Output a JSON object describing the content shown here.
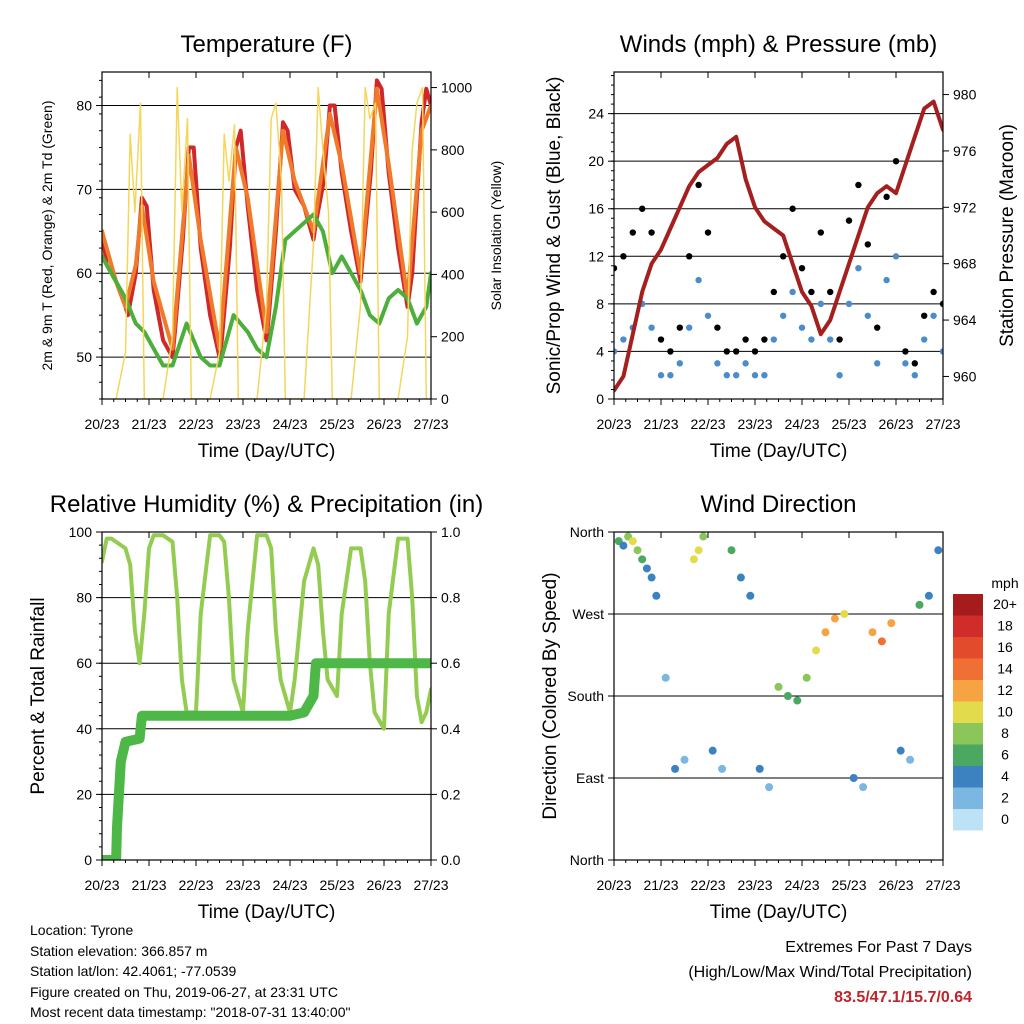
{
  "chart_data": [
    {
      "type": "line",
      "title": "Temperature (F)",
      "xlabel": "Time (Day/UTC)",
      "ylabel": "2m & 9m T (Red, Orange) & 2m Td (Green)",
      "y2label": "Solar Insolation (Yellow)",
      "xlim": [
        0,
        7
      ],
      "xticks": [
        "20/23",
        "21/23",
        "22/23",
        "23/23",
        "24/23",
        "25/23",
        "26/23",
        "27/23"
      ],
      "ylim": [
        45,
        84
      ],
      "yticks": [
        50,
        60,
        70,
        80
      ],
      "y2lim": [
        0,
        1050
      ],
      "y2ticks": [
        0,
        200,
        400,
        600,
        800,
        1000
      ],
      "grid": "horizontal",
      "series": [
        {
          "name": "2m T",
          "axis": "left",
          "color": "#d0282a",
          "x": [
            0,
            0.1,
            0.3,
            0.5,
            0.55,
            0.72,
            0.85,
            0.95,
            1.1,
            1.3,
            1.5,
            1.55,
            1.72,
            1.85,
            1.95,
            2.1,
            2.3,
            2.5,
            2.55,
            2.72,
            2.85,
            2.95,
            3.1,
            3.3,
            3.5,
            3.55,
            3.7,
            3.85,
            3.95,
            4.1,
            4.3,
            4.5,
            4.55,
            4.72,
            4.85,
            4.95,
            5.1,
            5.3,
            5.5,
            5.55,
            5.72,
            5.85,
            5.95,
            6.1,
            6.3,
            6.5,
            6.6,
            6.8,
            6.9,
            7.0
          ],
          "values": [
            65,
            61,
            59,
            56,
            55,
            60,
            69,
            68,
            58,
            52,
            50,
            53,
            64,
            75,
            75,
            63,
            55,
            50,
            52,
            63,
            75,
            77,
            68,
            58,
            52,
            55,
            65,
            78,
            77,
            70,
            68,
            64,
            66,
            71,
            80,
            80,
            72,
            65,
            59,
            62,
            72,
            83,
            82,
            72,
            63,
            56,
            60,
            78,
            82,
            80
          ]
        },
        {
          "name": "9m T",
          "axis": "left",
          "color": "#f07a2a",
          "x": [
            0,
            0.3,
            0.5,
            0.72,
            0.85,
            1.1,
            1.5,
            1.85,
            2.1,
            2.5,
            2.85,
            3.1,
            3.5,
            3.85,
            4.1,
            4.5,
            4.85,
            5.1,
            5.5,
            5.85,
            6.1,
            6.5,
            6.8,
            7.0
          ],
          "values": [
            65,
            59,
            56,
            61,
            68,
            59,
            51,
            74,
            64,
            51,
            75,
            69,
            53,
            77,
            71,
            65,
            79,
            73,
            60,
            82,
            73,
            57,
            77,
            80
          ]
        },
        {
          "name": "2m Td",
          "axis": "left",
          "color": "#4caf3c",
          "x": [
            0,
            0.3,
            0.5,
            0.72,
            0.9,
            1.1,
            1.3,
            1.5,
            1.8,
            2.1,
            2.3,
            2.5,
            2.8,
            3.1,
            3.3,
            3.5,
            3.7,
            3.9,
            4.1,
            4.3,
            4.5,
            4.7,
            4.9,
            5.1,
            5.3,
            5.5,
            5.7,
            5.9,
            6.1,
            6.3,
            6.5,
            6.7,
            6.9,
            7.0
          ],
          "values": [
            62,
            59,
            57,
            54,
            53,
            51,
            49,
            49,
            54,
            50,
            49,
            49,
            55,
            53,
            51,
            50,
            56,
            64,
            65,
            66,
            67,
            65,
            60,
            62,
            60,
            58,
            55,
            54,
            57,
            58,
            57,
            54,
            56,
            60
          ]
        },
        {
          "name": "Solar Insolation",
          "axis": "right",
          "color": "#f5d65a",
          "x": [
            0.3,
            0.5,
            0.6,
            0.7,
            0.82,
            0.9,
            1.3,
            1.5,
            1.6,
            1.7,
            1.82,
            1.9,
            2.3,
            2.5,
            2.6,
            2.7,
            2.82,
            2.9,
            3.3,
            3.5,
            3.6,
            3.7,
            3.82,
            3.9,
            4.3,
            4.5,
            4.6,
            4.7,
            4.82,
            4.9,
            5.3,
            5.5,
            5.6,
            5.7,
            5.82,
            5.9,
            6.3,
            6.5,
            6.6,
            6.7,
            6.82,
            6.9
          ],
          "values": [
            0,
            150,
            850,
            600,
            950,
            0,
            0,
            200,
            1000,
            600,
            900,
            0,
            0,
            150,
            850,
            700,
            880,
            0,
            0,
            300,
            900,
            950,
            700,
            0,
            0,
            500,
            1000,
            800,
            600,
            0,
            0,
            300,
            1000,
            900,
            950,
            0,
            0,
            200,
            800,
            950,
            1000,
            0
          ]
        }
      ]
    },
    {
      "type": "scatter",
      "title": "Winds (mph) & Pressure (mb)",
      "xlabel": "Time (Day/UTC)",
      "ylabel": "Sonic/Prop Wind & Gust (Blue, Black)",
      "y2label": "Station Pressure (Maroon)",
      "xlim": [
        0,
        7
      ],
      "xticks": [
        "20/23",
        "21/23",
        "22/23",
        "23/23",
        "24/23",
        "25/23",
        "26/23",
        "27/23"
      ],
      "ylim": [
        0,
        27.5
      ],
      "yticks": [
        0,
        4,
        8,
        12,
        16,
        20,
        24
      ],
      "y2lim": [
        958.4,
        981.6
      ],
      "y2ticks": [
        960,
        964,
        968,
        972,
        976,
        980
      ],
      "grid": "horizontal",
      "series": [
        {
          "name": "Wind",
          "axis": "left",
          "color": "#4a8ccc",
          "x": [
            0,
            0.2,
            0.4,
            0.6,
            0.8,
            1.0,
            1.2,
            1.4,
            1.6,
            1.8,
            2.0,
            2.2,
            2.4,
            2.6,
            2.8,
            3.0,
            3.2,
            3.4,
            3.6,
            3.8,
            4.0,
            4.2,
            4.4,
            4.6,
            4.8,
            5.0,
            5.2,
            5.4,
            5.6,
            5.8,
            6.0,
            6.2,
            6.4,
            6.6,
            6.8,
            7.0
          ],
          "values": [
            4,
            5,
            6,
            8,
            6,
            2,
            2,
            3,
            6,
            10,
            7,
            3,
            2,
            2,
            3,
            2,
            2,
            5,
            7,
            9,
            6,
            5,
            8,
            5,
            2,
            8,
            11,
            7,
            3,
            10,
            12,
            3,
            2,
            5,
            7,
            4
          ]
        },
        {
          "name": "Gust",
          "axis": "left",
          "color": "#000000",
          "x": [
            0,
            0.2,
            0.4,
            0.6,
            0.8,
            1.0,
            1.2,
            1.4,
            1.6,
            1.8,
            2.0,
            2.2,
            2.4,
            2.6,
            2.8,
            3.0,
            3.2,
            3.4,
            3.6,
            3.8,
            4.0,
            4.2,
            4.4,
            4.6,
            4.8,
            5.0,
            5.2,
            5.4,
            5.6,
            5.8,
            6.0,
            6.2,
            6.4,
            6.6,
            6.8,
            7.0
          ],
          "values": [
            11,
            12,
            14,
            16,
            14,
            5,
            4,
            6,
            12,
            18,
            14,
            6,
            4,
            4,
            5,
            4,
            5,
            9,
            12,
            16,
            11,
            9,
            14,
            9,
            5,
            15,
            18,
            13,
            6,
            17,
            20,
            4,
            3,
            7,
            9,
            8
          ]
        },
        {
          "name": "Pressure",
          "axis": "right",
          "color": "#a3201f",
          "x": [
            0,
            0.2,
            0.4,
            0.6,
            0.8,
            1.0,
            1.2,
            1.4,
            1.6,
            1.8,
            2.0,
            2.2,
            2.4,
            2.6,
            2.8,
            3.0,
            3.2,
            3.4,
            3.6,
            3.8,
            4.0,
            4.2,
            4.4,
            4.6,
            4.8,
            5.0,
            5.2,
            5.4,
            5.6,
            5.8,
            6.0,
            6.2,
            6.4,
            6.6,
            6.8,
            7.0
          ],
          "values": [
            959,
            960,
            963,
            966,
            968,
            969,
            970.5,
            972,
            973.5,
            974.5,
            975,
            975.5,
            976.5,
            977,
            974,
            972,
            971,
            970.5,
            970,
            968,
            966,
            965,
            963,
            964,
            966,
            968,
            970,
            972,
            973,
            973.5,
            973,
            975,
            977,
            979,
            979.5,
            977.5
          ]
        }
      ]
    },
    {
      "type": "line",
      "title": "Relative Humidity (%) & Precipitation (in)",
      "xlabel": "Time (Day/UTC)",
      "ylabel": "Percent & Total Rainfall",
      "xlim": [
        0,
        7
      ],
      "xticks": [
        "20/23",
        "21/23",
        "22/23",
        "23/23",
        "24/23",
        "25/23",
        "26/23",
        "27/23"
      ],
      "ylim": [
        0,
        100
      ],
      "yticks": [
        0,
        20,
        40,
        60,
        80,
        100
      ],
      "y2lim": [
        0,
        1.0
      ],
      "y2ticks": [
        "0.0",
        "0.2",
        "0.4",
        "0.6",
        "0.8",
        "1.0"
      ],
      "grid": "horizontal",
      "series": [
        {
          "name": "Relative Humidity",
          "axis": "left",
          "color": "#94cc52",
          "x": [
            0,
            0.1,
            0.2,
            0.4,
            0.5,
            0.6,
            0.7,
            0.8,
            0.9,
            1.0,
            1.1,
            1.3,
            1.5,
            1.6,
            1.7,
            1.8,
            2.0,
            2.1,
            2.3,
            2.5,
            2.6,
            2.7,
            2.8,
            3.0,
            3.1,
            3.3,
            3.5,
            3.6,
            3.7,
            3.8,
            4.0,
            4.1,
            4.3,
            4.5,
            4.6,
            4.7,
            4.8,
            5.0,
            5.1,
            5.3,
            5.5,
            5.6,
            5.7,
            5.8,
            6.0,
            6.1,
            6.3,
            6.5,
            6.6,
            6.7,
            6.8,
            6.9,
            7.0
          ],
          "values": [
            91,
            98,
            98,
            96,
            95,
            90,
            70,
            60,
            75,
            95,
            99,
            99,
            97,
            80,
            55,
            45,
            45,
            75,
            99,
            99,
            97,
            80,
            55,
            45,
            70,
            99,
            99,
            95,
            70,
            55,
            45,
            55,
            85,
            95,
            90,
            70,
            55,
            50,
            75,
            95,
            95,
            85,
            60,
            45,
            40,
            75,
            98,
            98,
            80,
            50,
            42,
            45,
            52
          ]
        },
        {
          "name": "Precipitation",
          "axis": "right",
          "color": "#4db848",
          "x": [
            0,
            0.3,
            0.32,
            0.4,
            0.5,
            0.8,
            0.85,
            1.0,
            2.0,
            3.0,
            4.0,
            4.3,
            4.5,
            4.55,
            5.0,
            6.0,
            7.0
          ],
          "values": [
            0,
            0,
            0.1,
            0.3,
            0.36,
            0.37,
            0.44,
            0.44,
            0.44,
            0.44,
            0.44,
            0.45,
            0.5,
            0.6,
            0.6,
            0.6,
            0.6
          ]
        }
      ]
    },
    {
      "type": "scatter",
      "title": "Wind Direction",
      "xlabel": "Time (Day/UTC)",
      "ylabel": "Direction (Colored By Speed)",
      "xlim": [
        0,
        7
      ],
      "xticks": [
        "20/23",
        "21/23",
        "22/23",
        "23/23",
        "24/23",
        "25/23",
        "26/23",
        "27/23"
      ],
      "ylim": [
        0,
        360
      ],
      "yticks": [
        "North",
        "East",
        "South",
        "West",
        "North"
      ],
      "grid": "horizontal",
      "colorbar": {
        "title": "mph",
        "labels": [
          "20+",
          "18",
          "16",
          "14",
          "12",
          "10",
          "8",
          "6",
          "4",
          "2",
          "0"
        ],
        "colors": [
          "#a61c1c",
          "#cf2c2a",
          "#e24c2c",
          "#f06f32",
          "#f6a443",
          "#e2dc4c",
          "#8ac65a",
          "#4ba860",
          "#3c82c0",
          "#7ab8e2",
          "#bce2f6"
        ]
      },
      "series": [
        {
          "name": "Direction",
          "x": [
            0.1,
            0.2,
            0.3,
            0.4,
            0.5,
            0.6,
            0.7,
            0.8,
            0.9,
            1.1,
            1.3,
            1.5,
            1.7,
            1.8,
            1.9,
            2.1,
            2.3,
            2.5,
            2.7,
            2.9,
            3.1,
            3.3,
            3.5,
            3.7,
            3.9,
            4.1,
            4.3,
            4.5,
            4.7,
            4.9,
            5.1,
            5.3,
            5.5,
            5.7,
            5.9,
            6.1,
            6.3,
            6.5,
            6.7,
            6.9
          ],
          "values": [
            350,
            345,
            355,
            350,
            340,
            330,
            320,
            310,
            290,
            200,
            100,
            110,
            330,
            340,
            355,
            120,
            100,
            340,
            310,
            290,
            100,
            80,
            190,
            180,
            175,
            200,
            230,
            250,
            265,
            270,
            90,
            80,
            250,
            240,
            260,
            120,
            110,
            280,
            290,
            340
          ],
          "speeds": [
            6,
            4,
            8,
            10,
            7,
            5,
            4,
            3,
            4,
            2,
            3,
            2,
            9,
            10,
            8,
            3,
            2,
            5,
            4,
            4,
            3,
            2,
            8,
            6,
            5,
            7,
            9,
            11,
            12,
            10,
            3,
            2,
            12,
            13,
            11,
            3,
            2,
            5,
            4,
            4
          ]
        }
      ]
    }
  ],
  "footer": {
    "location": "Location: Tyrone",
    "elevation": "Station elevation: 366.857 m",
    "latlon": "Station lat/lon: 42.4061; -77.0539",
    "created": "Figure created on Thu, 2019-06-27, at 23:31 UTC",
    "recent": "Most recent data timestamp: \"2018-07-31 13:40:00\"",
    "extremes_title": "Extremes For Past 7 Days",
    "extremes_subtitle": "(High/Low/Max Wind/Total Precipitation)",
    "extremes_values": "83.5/47.1/15.7/0.64"
  }
}
